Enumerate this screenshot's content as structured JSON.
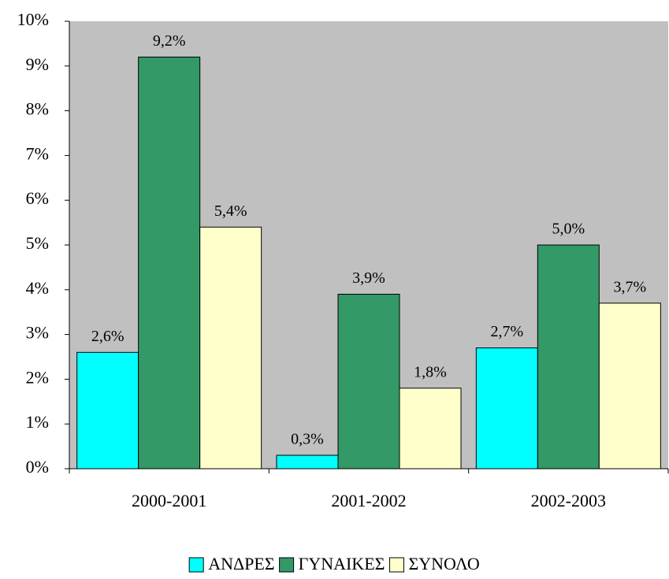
{
  "chart_data": {
    "type": "bar",
    "categories": [
      "2000-2001",
      "2001-2002",
      "2002-2003"
    ],
    "series": [
      {
        "name": "ΑΝΔΡΕΣ",
        "color": "#00FFFF",
        "values": [
          2.6,
          0.3,
          2.7
        ],
        "value_labels": [
          "2,6%",
          "0,3%",
          "2,7%"
        ]
      },
      {
        "name": "ΓΥΝΑΙΚΕΣ",
        "color": "#339966",
        "values": [
          9.2,
          3.9,
          5.0
        ],
        "value_labels": [
          "9,2%",
          "3,9%",
          "5,0%"
        ]
      },
      {
        "name": "ΣΥΝΟΛΟ",
        "color": "#FFFFCC",
        "values": [
          5.4,
          1.8,
          3.7
        ],
        "value_labels": [
          "5,4%",
          "1,8%",
          "3,7%"
        ]
      }
    ],
    "ylim": [
      0,
      10
    ],
    "yticks": [
      {
        "value": 0,
        "label": "0%"
      },
      {
        "value": 1,
        "label": "1%"
      },
      {
        "value": 2,
        "label": "2%"
      },
      {
        "value": 3,
        "label": "3%"
      },
      {
        "value": 4,
        "label": "4%"
      },
      {
        "value": 5,
        "label": "5%"
      },
      {
        "value": 6,
        "label": "6%"
      },
      {
        "value": 7,
        "label": "7%"
      },
      {
        "value": 8,
        "label": "8%"
      },
      {
        "value": 9,
        "label": "9%"
      },
      {
        "value": 10,
        "label": "10%"
      }
    ],
    "plot_background": "#C0C0C0",
    "legend": "bottom"
  }
}
